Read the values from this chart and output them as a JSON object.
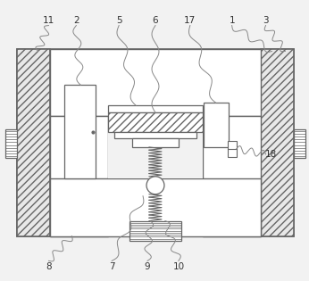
{
  "bg_color": "#f2f2f2",
  "line_color": "#666666",
  "figsize": [
    3.46,
    3.15
  ],
  "dpi": 100,
  "top_labels": {
    "11": 0.155,
    "2": 0.245,
    "5": 0.385,
    "6": 0.5,
    "17": 0.615,
    "1": 0.755,
    "3": 0.86
  },
  "bot_labels": {
    "8": 0.155,
    "7": 0.36,
    "9": 0.475,
    "10": 0.585
  },
  "side_labels": {
    "18": [
      0.865,
      0.495
    ]
  }
}
